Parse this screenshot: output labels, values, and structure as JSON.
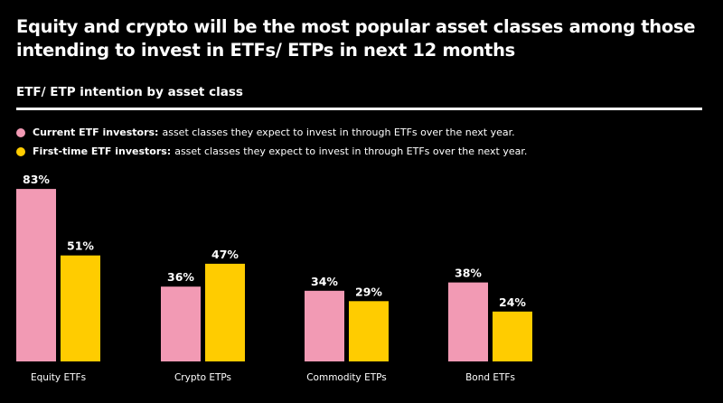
{
  "chart_data": {
    "type": "bar",
    "title": "Equity and crypto will be the most popular asset classes among those intending to invest in ETFs/ ETPs in next 12 months",
    "subtitle": "ETF/ ETP intention by asset class",
    "categories": [
      "Equity ETFs",
      "Crypto ETPs",
      "Commodity ETPs",
      "Bond ETFs"
    ],
    "series": [
      {
        "name": "Current ETF investors:",
        "description": "asset classes they expect to invest in through ETFs over the next year.",
        "color": "#f29ab4",
        "values": [
          83,
          36,
          34,
          38
        ],
        "labels": [
          "83%",
          "36%",
          "34%",
          "38%"
        ]
      },
      {
        "name": "First-time ETF investors:",
        "description": "asset classes they expect to invest in through ETFs over the next year.",
        "color": "#ffcc00",
        "values": [
          51,
          47,
          29,
          24
        ],
        "labels": [
          "51%",
          "47%",
          "29%",
          "24%"
        ]
      }
    ],
    "ylim": [
      0,
      100
    ],
    "legend_position": "top-left",
    "grid": false
  }
}
